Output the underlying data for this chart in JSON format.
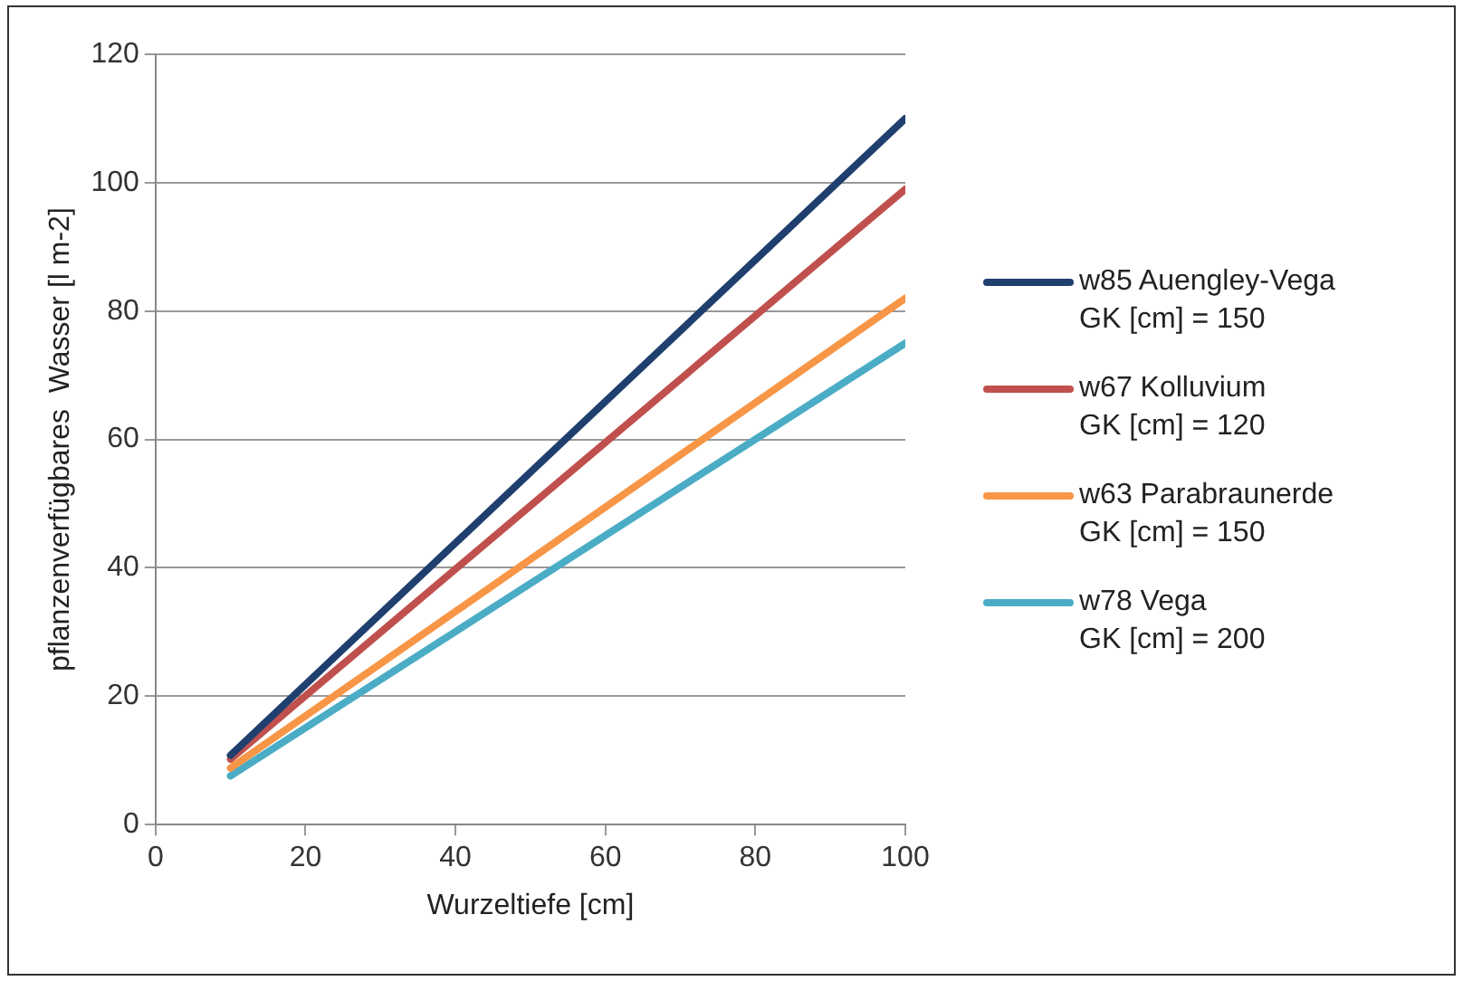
{
  "chart_data": {
    "type": "line",
    "xlabel": "Wurzeltiefe [cm]",
    "ylabel": "pflanzenverfügbares  Wasser [l m-2]",
    "xlim": [
      0,
      100
    ],
    "xticks": [
      0,
      20,
      40,
      60,
      80,
      100
    ],
    "ylim": [
      0,
      120
    ],
    "yticks": [
      0,
      20,
      40,
      60,
      80,
      100,
      120
    ],
    "x": [
      10,
      100
    ],
    "grid": "y",
    "legend": "right",
    "marker": "none",
    "line_style": "solid",
    "series": [
      {
        "name": "w85 Auengley-Vega\nGK [cm] = 150",
        "color": "#1f3f6e",
        "values": [
          10.8,
          110
        ]
      },
      {
        "name": "w67 Kolluvium\nGK [cm] = 120",
        "color": "#c0504d",
        "values": [
          10.2,
          99
        ]
      },
      {
        "name": "w63 Parabraunerde\nGK [cm] = 150",
        "color": "#f79646",
        "values": [
          8.8,
          82
        ]
      },
      {
        "name": "w78 Vega\nGK [cm] = 200",
        "color": "#4bacc6",
        "values": [
          7.6,
          75
        ]
      }
    ]
  }
}
